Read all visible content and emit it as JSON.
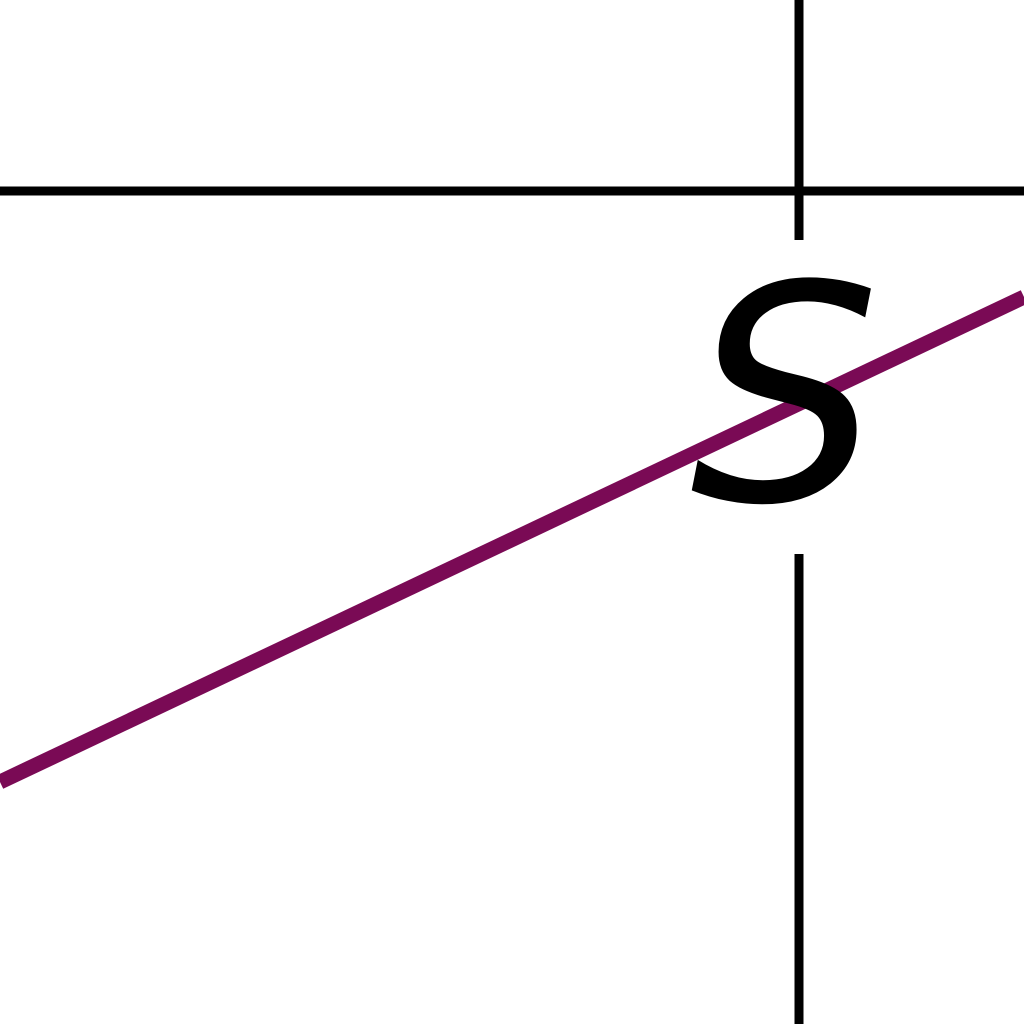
{
  "diagram": {
    "labels": {
      "curve_label": "S"
    },
    "colors": {
      "background": "#ffffff",
      "axis_lines": "#000000",
      "curve": "#7a0a55",
      "label_text": "#000000"
    }
  }
}
